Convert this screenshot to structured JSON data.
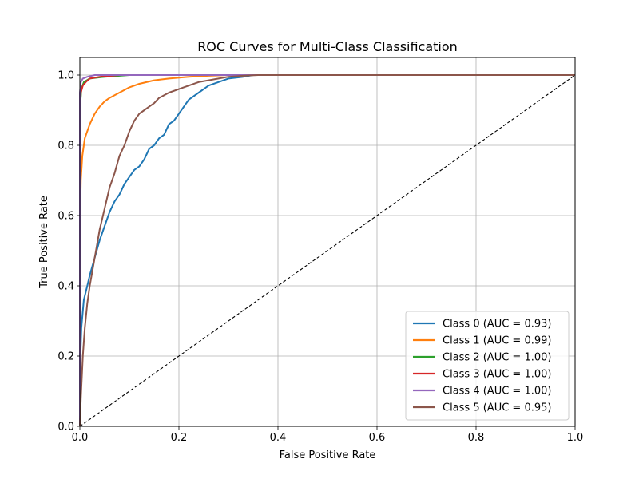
{
  "chart_data": {
    "type": "line",
    "title": "ROC Curves for Multi-Class Classification",
    "xlabel": "False Positive Rate",
    "ylabel": "True Positive Rate",
    "xlim": [
      0.0,
      1.0
    ],
    "ylim": [
      0.0,
      1.05
    ],
    "x_ticks": [
      "0.0",
      "0.2",
      "0.4",
      "0.6",
      "0.8",
      "1.0"
    ],
    "y_ticks": [
      "0.0",
      "0.2",
      "0.4",
      "0.6",
      "0.8",
      "1.0"
    ],
    "grid": true,
    "legend_position": "lower-right",
    "series": [
      {
        "name": "Class 0 (AUC = 0.93)",
        "color": "#1f77b4",
        "points": [
          [
            0.0,
            0.0
          ],
          [
            0.0,
            0.15
          ],
          [
            0.003,
            0.28
          ],
          [
            0.008,
            0.36
          ],
          [
            0.015,
            0.4
          ],
          [
            0.02,
            0.43
          ],
          [
            0.03,
            0.48
          ],
          [
            0.04,
            0.53
          ],
          [
            0.05,
            0.57
          ],
          [
            0.06,
            0.61
          ],
          [
            0.07,
            0.64
          ],
          [
            0.08,
            0.66
          ],
          [
            0.09,
            0.69
          ],
          [
            0.1,
            0.71
          ],
          [
            0.11,
            0.73
          ],
          [
            0.12,
            0.74
          ],
          [
            0.13,
            0.76
          ],
          [
            0.14,
            0.79
          ],
          [
            0.15,
            0.8
          ],
          [
            0.16,
            0.82
          ],
          [
            0.17,
            0.83
          ],
          [
            0.18,
            0.86
          ],
          [
            0.19,
            0.87
          ],
          [
            0.2,
            0.89
          ],
          [
            0.21,
            0.91
          ],
          [
            0.22,
            0.93
          ],
          [
            0.24,
            0.95
          ],
          [
            0.26,
            0.97
          ],
          [
            0.28,
            0.98
          ],
          [
            0.3,
            0.99
          ],
          [
            0.33,
            0.995
          ],
          [
            0.35,
            1.0
          ],
          [
            1.0,
            1.0
          ]
        ]
      },
      {
        "name": "Class 1 (AUC = 0.99)",
        "color": "#ff7f0e",
        "points": [
          [
            0.0,
            0.0
          ],
          [
            0.0,
            0.55
          ],
          [
            0.002,
            0.7
          ],
          [
            0.005,
            0.77
          ],
          [
            0.01,
            0.82
          ],
          [
            0.02,
            0.86
          ],
          [
            0.03,
            0.89
          ],
          [
            0.04,
            0.91
          ],
          [
            0.05,
            0.925
          ],
          [
            0.06,
            0.935
          ],
          [
            0.08,
            0.95
          ],
          [
            0.1,
            0.965
          ],
          [
            0.12,
            0.975
          ],
          [
            0.15,
            0.985
          ],
          [
            0.18,
            0.99
          ],
          [
            0.22,
            0.995
          ],
          [
            0.26,
            0.998
          ],
          [
            0.3,
            1.0
          ],
          [
            1.0,
            1.0
          ]
        ]
      },
      {
        "name": "Class 2 (AUC = 1.00)",
        "color": "#2ca02c",
        "points": [
          [
            0.0,
            0.0
          ],
          [
            0.0,
            0.9
          ],
          [
            0.003,
            0.96
          ],
          [
            0.008,
            0.98
          ],
          [
            0.02,
            0.99
          ],
          [
            0.05,
            0.995
          ],
          [
            0.1,
            1.0
          ],
          [
            1.0,
            1.0
          ]
        ]
      },
      {
        "name": "Class 3 (AUC = 1.00)",
        "color": "#d62728",
        "points": [
          [
            0.0,
            0.0
          ],
          [
            0.0,
            0.88
          ],
          [
            0.002,
            0.95
          ],
          [
            0.006,
            0.97
          ],
          [
            0.012,
            0.98
          ],
          [
            0.02,
            0.99
          ],
          [
            0.04,
            0.995
          ],
          [
            0.08,
            1.0
          ],
          [
            1.0,
            1.0
          ]
        ]
      },
      {
        "name": "Class 4 (AUC = 1.00)",
        "color": "#9467bd",
        "points": [
          [
            0.0,
            0.0
          ],
          [
            0.0,
            0.95
          ],
          [
            0.002,
            0.98
          ],
          [
            0.006,
            0.99
          ],
          [
            0.015,
            0.995
          ],
          [
            0.03,
            1.0
          ],
          [
            1.0,
            1.0
          ]
        ]
      },
      {
        "name": "Class 5 (AUC = 0.95)",
        "color": "#8c564b",
        "points": [
          [
            0.0,
            0.0
          ],
          [
            0.002,
            0.08
          ],
          [
            0.006,
            0.2
          ],
          [
            0.01,
            0.28
          ],
          [
            0.015,
            0.35
          ],
          [
            0.02,
            0.4
          ],
          [
            0.03,
            0.48
          ],
          [
            0.04,
            0.56
          ],
          [
            0.05,
            0.62
          ],
          [
            0.06,
            0.68
          ],
          [
            0.07,
            0.72
          ],
          [
            0.08,
            0.77
          ],
          [
            0.09,
            0.8
          ],
          [
            0.1,
            0.84
          ],
          [
            0.11,
            0.87
          ],
          [
            0.12,
            0.89
          ],
          [
            0.13,
            0.9
          ],
          [
            0.14,
            0.91
          ],
          [
            0.15,
            0.92
          ],
          [
            0.16,
            0.935
          ],
          [
            0.18,
            0.95
          ],
          [
            0.2,
            0.96
          ],
          [
            0.22,
            0.97
          ],
          [
            0.24,
            0.98
          ],
          [
            0.26,
            0.985
          ],
          [
            0.28,
            0.99
          ],
          [
            0.3,
            0.995
          ],
          [
            0.33,
            0.998
          ],
          [
            0.36,
            1.0
          ],
          [
            1.0,
            1.0
          ]
        ]
      }
    ],
    "reference_line": {
      "color": "#000000",
      "points": [
        [
          0.0,
          0.0
        ],
        [
          1.0,
          1.0
        ]
      ]
    }
  }
}
